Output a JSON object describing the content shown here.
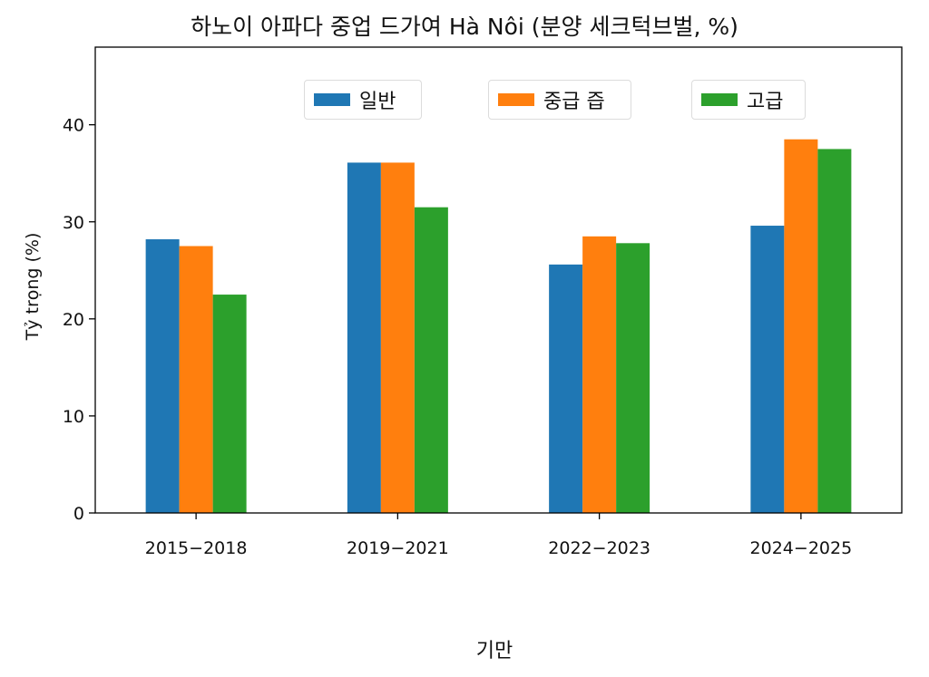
{
  "chart_data": {
    "type": "bar",
    "title": "하노이 아파다 중업 드가여 Hà Nôi (분양 세크턱브벌, %)",
    "xlabel": "기만",
    "ylabel": "Tỷ trọng (%)",
    "categories": [
      "2015−2018",
      "2019−2021",
      "2022−2023",
      "2024−2025"
    ],
    "ylim": [
      0,
      48
    ],
    "yticks": [
      0,
      10,
      20,
      30,
      40
    ],
    "grid": false,
    "legend_placement": "top",
    "series": [
      {
        "name": "일반",
        "color": "#1f77b4",
        "values": [
          28.2,
          36.1,
          25.6,
          29.6
        ]
      },
      {
        "name": "중급 즙",
        "color": "#ff7f0e",
        "values": [
          27.5,
          36.1,
          28.5,
          38.5
        ]
      },
      {
        "name": "고급",
        "color": "#2ca02c",
        "values": [
          22.5,
          31.5,
          27.8,
          37.5
        ]
      }
    ]
  }
}
